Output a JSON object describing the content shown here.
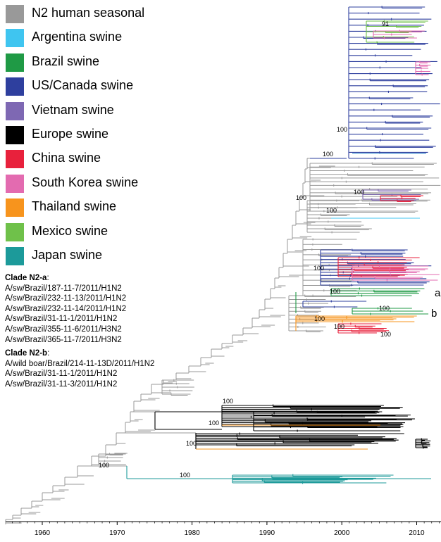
{
  "legend": [
    {
      "label": "N2 human seasonal",
      "color": "#999999"
    },
    {
      "label": "Argentina swine",
      "color": "#3fc5f0"
    },
    {
      "label": "Brazil swine",
      "color": "#1f9a45"
    },
    {
      "label": "US/Canada swine",
      "color": "#2e3f9e"
    },
    {
      "label": "Vietnam swine",
      "color": "#7e68b3"
    },
    {
      "label": "Europe swine",
      "color": "#000000"
    },
    {
      "label": "China swine",
      "color": "#e8213c"
    },
    {
      "label": "South Korea swine",
      "color": "#e36bb0"
    },
    {
      "label": "Thailand swine",
      "color": "#f7941d"
    },
    {
      "label": "Mexico swine",
      "color": "#6fc14a"
    },
    {
      "label": "Japan swine",
      "color": "#1c9a9a"
    }
  ],
  "clades": [
    {
      "title": "Clade N2-a",
      "suffix": ":",
      "strains": [
        "A/sw/Brazil/187-11-7/2011/H1N2",
        "A/sw/Brazil/232-11-13/2011/H1N2",
        "A/sw/Brazil/232-11-14/2011/H1N2",
        "A/sw/Brazil/31-11-1/2011/H1N2",
        "A/sw/Brazil/355-11-6/2011/H3N2",
        "A/sw/Brazil/365-11-7/2011/H3N2"
      ]
    },
    {
      "title": "Clade N2-b",
      "suffix": ":",
      "strains": [
        "A/wild boar/Brazil/214-11-13D/2011/H1N2",
        "A/sw/Brazil/31-11-1/2011/H1N2",
        "A/sw/Brazil/31-11-3/2011/H1N2"
      ]
    }
  ],
  "axis": {
    "ticks": [
      "1960",
      "1970",
      "1980",
      "1990",
      "2000",
      "2010"
    ]
  },
  "clade_markers": {
    "a": "a",
    "b": "b"
  },
  "bootstrap": {
    "v91": "91",
    "v100": "100"
  }
}
